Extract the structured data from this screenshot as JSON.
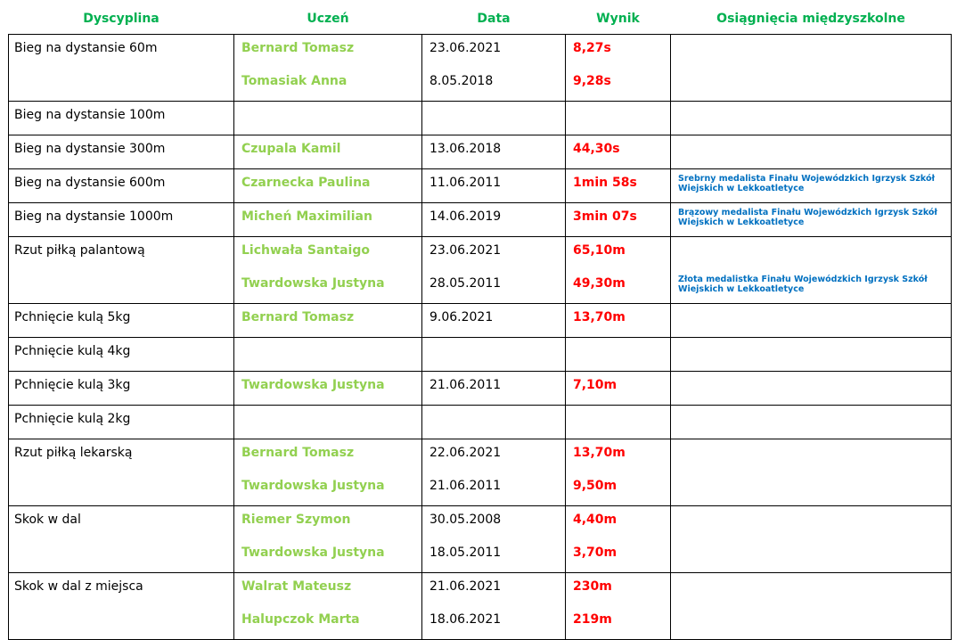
{
  "colors": {
    "header": "#00b050",
    "student": "#92d050",
    "result": "#ff0000",
    "achievement": "#0070c0",
    "text": "#000000"
  },
  "headers": {
    "discipline": "Dyscyplina",
    "student": "Uczeń",
    "date": "Data",
    "result": "Wynik",
    "achievements": "Osiągnięcia międzyszkolne"
  },
  "rows": [
    {
      "discipline": "Bieg na dystansie 60m",
      "entries": [
        {
          "student": "Bernard Tomasz",
          "date": "23.06.2021",
          "result": "8,27s",
          "achievement": ""
        },
        {
          "student": "Tomasiak Anna",
          "date": "8.05.2018",
          "result": "9,28s",
          "achievement": ""
        }
      ]
    },
    {
      "discipline": "Bieg na dystansie 100m",
      "entries": [
        {
          "student": "",
          "date": "",
          "result": "",
          "achievement": ""
        }
      ]
    },
    {
      "discipline": "Bieg na dystansie 300m",
      "entries": [
        {
          "student": "Czupala Kamil",
          "date": "13.06.2018",
          "result": "44,30s",
          "achievement": ""
        }
      ]
    },
    {
      "discipline": "Bieg na dystansie 600m",
      "entries": [
        {
          "student": "Czarnecka Paulina",
          "date": "11.06.2011",
          "result": "1min 58s",
          "achievement": "Srebrny medalista Finału Wojewódzkich Igrzysk Szkół Wiejskich w Lekkoatletyce"
        }
      ]
    },
    {
      "discipline": "Bieg na dystansie 1000m",
      "entries": [
        {
          "student": "Micheń Maximilian",
          "date": "14.06.2019",
          "result": "3min 07s",
          "achievement": "Brązowy medalista Finału Wojewódzkich Igrzysk Szkół Wiejskich w Lekkoatletyce"
        }
      ]
    },
    {
      "discipline": "Rzut piłką palantową",
      "entries": [
        {
          "student": "Lichwała Santaigo",
          "date": "23.06.2021",
          "result": "65,10m",
          "achievement": ""
        },
        {
          "student": "Twardowska Justyna",
          "date": "28.05.2011",
          "result": "49,30m",
          "achievement": "Złota medalistka Finału Wojewódzkich Igrzysk Szkół Wiejskich w Lekkoatletyce"
        }
      ]
    },
    {
      "discipline": "Pchnięcie kulą 5kg",
      "entries": [
        {
          "student": "Bernard Tomasz",
          "date": "9.06.2021",
          "result": "13,70m",
          "achievement": ""
        }
      ]
    },
    {
      "discipline": "Pchnięcie kulą 4kg",
      "entries": [
        {
          "student": "",
          "date": "",
          "result": "",
          "achievement": ""
        }
      ]
    },
    {
      "discipline": "Pchnięcie kulą 3kg",
      "entries": [
        {
          "student": "Twardowska Justyna",
          "date": "21.06.2011",
          "result": "7,10m",
          "achievement": ""
        }
      ]
    },
    {
      "discipline": "Pchnięcie kulą 2kg",
      "entries": [
        {
          "student": "",
          "date": "",
          "result": "",
          "achievement": ""
        }
      ]
    },
    {
      "discipline": "Rzut piłką lekarską",
      "entries": [
        {
          "student": "Bernard Tomasz",
          "date": "22.06.2021",
          "result": "13,70m",
          "achievement": ""
        },
        {
          "student": "Twardowska Justyna",
          "date": "21.06.2011",
          "result": "9,50m",
          "achievement": ""
        }
      ]
    },
    {
      "discipline": "Skok w dal",
      "entries": [
        {
          "student": "Riemer Szymon",
          "date": "30.05.2008",
          "result": "4,40m",
          "achievement": ""
        },
        {
          "student": "Twardowska Justyna",
          "date": "18.05.2011",
          "result": "3,70m",
          "achievement": ""
        }
      ]
    },
    {
      "discipline": "Skok w dal z miejsca",
      "entries": [
        {
          "student": "Walrat Mateusz",
          "date": "21.06.2021",
          "result": "230m",
          "achievement": ""
        },
        {
          "student": "Halupczok Marta",
          "date": "18.06.2021",
          "result": "219m",
          "achievement": ""
        }
      ]
    }
  ]
}
